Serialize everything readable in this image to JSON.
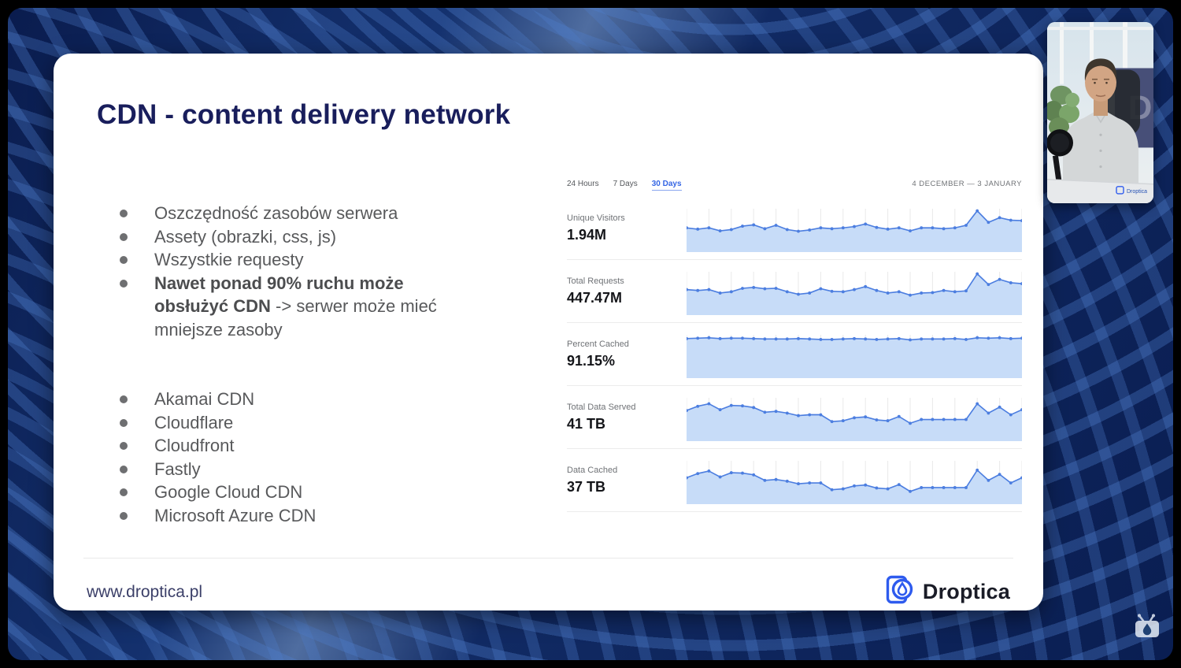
{
  "slide": {
    "title": "CDN - content delivery network",
    "benefits": [
      {
        "segments": [
          {
            "text": "Oszczędność zasobów serwera",
            "bold": false
          }
        ]
      },
      {
        "segments": [
          {
            "text": "Assety (obrazki, css, js)",
            "bold": false
          }
        ]
      },
      {
        "segments": [
          {
            "text": "Wszystkie requesty",
            "bold": false
          }
        ]
      },
      {
        "segments": [
          {
            "text": "Nawet ponad 90% ruchu może obsłużyć CDN",
            "bold": true
          },
          {
            "text": " -> serwer może mieć mniejsze zasoby",
            "bold": false
          }
        ]
      }
    ],
    "vendors": [
      "Akamai CDN",
      "Cloudflare",
      "Cloudfront",
      "Fastly",
      "Google Cloud CDN",
      "Microsoft Azure CDN"
    ],
    "footer_url": "www.droptica.pl",
    "brand_name": "Droptica"
  },
  "dashboard": {
    "tabs": [
      {
        "label": "24 Hours",
        "active": false
      },
      {
        "label": "7 Days",
        "active": false
      },
      {
        "label": "30 Days",
        "active": true
      }
    ],
    "date_range": "4 DECEMBER — 3 JANUARY",
    "metrics": [
      {
        "label": "Unique Visitors",
        "value": "1.94M"
      },
      {
        "label": "Total Requests",
        "value": "447.47M"
      },
      {
        "label": "Percent Cached",
        "value": "91.15%"
      },
      {
        "label": "Total Data Served",
        "value": "41 TB"
      },
      {
        "label": "Data Cached",
        "value": "37 TB"
      }
    ]
  },
  "chart_data": [
    {
      "type": "area",
      "title": "Unique Visitors",
      "data_label": "1.94M",
      "period": "30 Days",
      "x_range": "4 December — 3 January",
      "unit": "relative-height-%",
      "ylim": [
        0,
        100
      ],
      "grid": "faint-vertical",
      "legend": "none",
      "values": [
        57,
        54,
        57,
        50,
        53,
        61,
        64,
        55,
        63,
        53,
        49,
        52,
        57,
        55,
        57,
        60,
        66,
        58,
        54,
        57,
        50,
        57,
        57,
        55,
        57,
        63,
        97,
        70,
        81,
        75,
        74
      ]
    },
    {
      "type": "area",
      "title": "Total Requests",
      "data_label": "447.47M",
      "period": "30 Days",
      "x_range": "4 December — 3 January",
      "unit": "relative-height-%",
      "ylim": [
        0,
        100
      ],
      "grid": "faint-vertical",
      "legend": "none",
      "values": [
        60,
        58,
        60,
        52,
        55,
        63,
        65,
        62,
        63,
        55,
        49,
        52,
        62,
        56,
        55,
        60,
        67,
        58,
        52,
        55,
        47,
        52,
        53,
        58,
        55,
        57,
        97,
        72,
        84,
        76,
        74
      ]
    },
    {
      "type": "area",
      "title": "Percent Cached",
      "data_label": "91.15%",
      "period": "30 Days",
      "x_range": "4 December — 3 January",
      "unit": "relative-height-%",
      "ylim": [
        0,
        100
      ],
      "grid": "faint-vertical",
      "legend": "none",
      "values": [
        93,
        94,
        95,
        93,
        94,
        94,
        93,
        92,
        92,
        92,
        93,
        92,
        91,
        91,
        92,
        93,
        92,
        91,
        92,
        93,
        90,
        92,
        92,
        92,
        93,
        91,
        95,
        94,
        95,
        93,
        94
      ]
    },
    {
      "type": "area",
      "title": "Total Data Served",
      "data_label": "41 TB",
      "period": "30 Days",
      "x_range": "4 December — 3 January",
      "unit": "relative-height-%",
      "ylim": [
        0,
        100
      ],
      "grid": "faint-vertical",
      "legend": "none",
      "values": [
        72,
        82,
        88,
        74,
        84,
        83,
        79,
        68,
        70,
        66,
        60,
        62,
        62,
        46,
        48,
        55,
        57,
        50,
        48,
        58,
        42,
        51,
        51,
        51,
        51,
        51,
        88,
        66,
        80,
        62,
        74
      ]
    },
    {
      "type": "area",
      "title": "Data Cached",
      "data_label": "37 TB",
      "period": "30 Days",
      "x_range": "4 December — 3 January",
      "unit": "relative-height-%",
      "ylim": [
        0,
        100
      ],
      "grid": "faint-vertical",
      "legend": "none",
      "values": [
        62,
        72,
        78,
        64,
        74,
        73,
        69,
        56,
        58,
        54,
        48,
        50,
        50,
        34,
        36,
        43,
        45,
        38,
        36,
        46,
        30,
        39,
        39,
        39,
        39,
        39,
        80,
        56,
        70,
        50,
        62
      ]
    }
  ],
  "webcam": {
    "watermark": "Droptica"
  },
  "colors": {
    "chart_line": "#4c7ee0",
    "chart_fill": "#c7dcf8",
    "chart_grid": "#e9e9e9",
    "tab_active": "#3566e4",
    "title_navy": "#191e5c",
    "brand_blue": "#2e5bee",
    "bg_navy": "#0b1f55"
  }
}
